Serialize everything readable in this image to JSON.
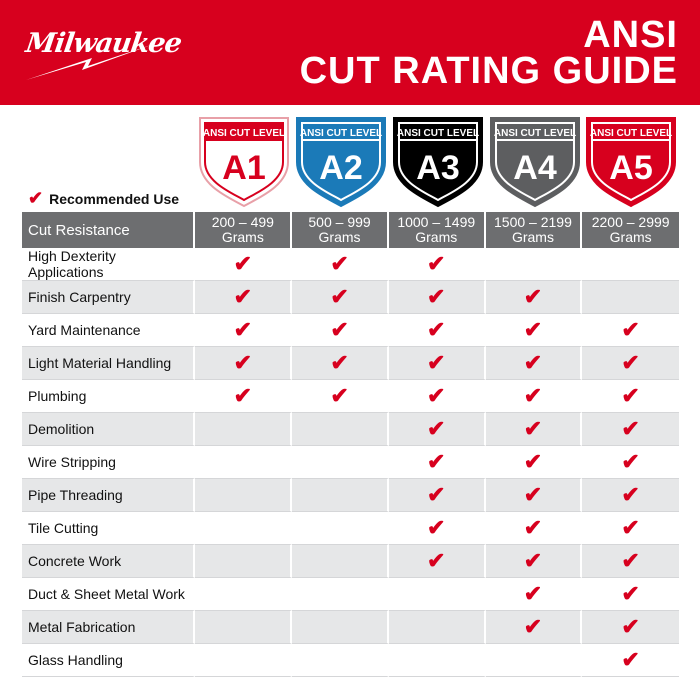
{
  "brand": {
    "logo": "Milwaukee"
  },
  "header": {
    "title_line1": "ANSI",
    "title_line2": "CUT RATING GUIDE"
  },
  "colors": {
    "brand_red": "#d7001e",
    "header_gray": "#6d6e70",
    "alt_row": "#e6e7e8"
  },
  "legend": {
    "icon": "checkmark-icon",
    "label": "Recommended Use"
  },
  "levels": [
    {
      "top": "ANSI CUT LEVEL",
      "code": "A1",
      "fill": "#ffffff",
      "text": "#d7001e",
      "band": "#d7001e",
      "range": "200 – 499",
      "unit": "Grams"
    },
    {
      "top": "ANSI CUT LEVEL",
      "code": "A2",
      "fill": "#1b7ab8",
      "text": "#ffffff",
      "band": "#1b7ab8",
      "range": "500 – 999",
      "unit": "Grams"
    },
    {
      "top": "ANSI CUT LEVEL",
      "code": "A3",
      "fill": "#000000",
      "text": "#ffffff",
      "band": "#000000",
      "range": "1000 – 1499",
      "unit": "Grams"
    },
    {
      "top": "ANSI CUT LEVEL",
      "code": "A4",
      "fill": "#5d5e60",
      "text": "#ffffff",
      "band": "#5d5e60",
      "range": "1500 – 2199",
      "unit": "Grams"
    },
    {
      "top": "ANSI CUT LEVEL",
      "code": "A5",
      "fill": "#d7001e",
      "text": "#ffffff",
      "band": "#d7001e",
      "range": "2200 – 2999",
      "unit": "Grams"
    }
  ],
  "table": {
    "header_label": "Cut Resistance",
    "rows": [
      {
        "label": "High Dexterity Applications",
        "checks": [
          1,
          1,
          1,
          0,
          0
        ]
      },
      {
        "label": "Finish Carpentry",
        "checks": [
          1,
          1,
          1,
          1,
          0
        ]
      },
      {
        "label": "Yard Maintenance",
        "checks": [
          1,
          1,
          1,
          1,
          1
        ]
      },
      {
        "label": "Light Material Handling",
        "checks": [
          1,
          1,
          1,
          1,
          1
        ]
      },
      {
        "label": "Plumbing",
        "checks": [
          1,
          1,
          1,
          1,
          1
        ]
      },
      {
        "label": "Demolition",
        "checks": [
          0,
          0,
          1,
          1,
          1
        ]
      },
      {
        "label": "Wire Stripping",
        "checks": [
          0,
          0,
          1,
          1,
          1
        ]
      },
      {
        "label": "Pipe Threading",
        "checks": [
          0,
          0,
          1,
          1,
          1
        ]
      },
      {
        "label": "Tile Cutting",
        "checks": [
          0,
          0,
          1,
          1,
          1
        ]
      },
      {
        "label": "Concrete Work",
        "checks": [
          0,
          0,
          1,
          1,
          1
        ]
      },
      {
        "label": "Duct & Sheet Metal Work",
        "checks": [
          0,
          0,
          0,
          1,
          1
        ]
      },
      {
        "label": "Metal Fabrication",
        "checks": [
          0,
          0,
          0,
          1,
          1
        ]
      },
      {
        "label": "Glass Handling",
        "checks": [
          0,
          0,
          0,
          0,
          1
        ]
      }
    ]
  }
}
